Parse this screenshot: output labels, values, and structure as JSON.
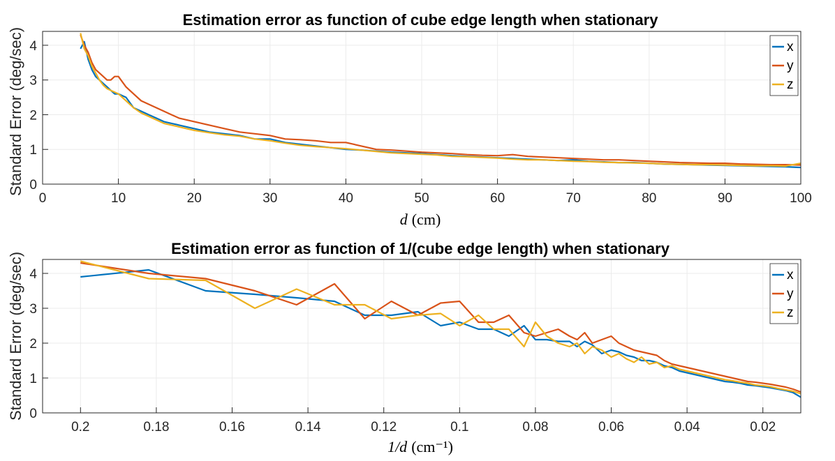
{
  "chart_data": [
    {
      "type": "line",
      "title": "Estimation error as function of cube edge length when stationary",
      "xlabel": "d",
      "xlabel_unit": "(cm)",
      "ylabel": "Standard Error (deg/sec)",
      "xlim": [
        0,
        100
      ],
      "ylim": [
        0,
        4.4
      ],
      "xticks": [
        0,
        10,
        20,
        30,
        40,
        50,
        60,
        70,
        80,
        90,
        100
      ],
      "yticks": [
        0,
        1,
        2,
        3,
        4
      ],
      "grid": true,
      "legend": "top-right",
      "x": [
        5,
        5.5,
        6,
        6.5,
        7,
        7.5,
        8,
        8.5,
        9,
        9.5,
        10,
        11,
        12,
        13,
        14,
        15,
        16,
        17,
        18,
        19,
        20,
        22,
        24,
        26,
        28,
        30,
        32,
        34,
        36,
        38,
        40,
        42,
        44,
        46,
        48,
        50,
        52,
        54,
        56,
        58,
        60,
        62,
        64,
        66,
        68,
        70,
        72,
        74,
        76,
        78,
        80,
        82,
        84,
        86,
        88,
        90,
        92,
        94,
        96,
        98,
        100
      ],
      "series": [
        {
          "name": "x",
          "color": "#0072BD",
          "values": [
            3.9,
            4.1,
            3.6,
            3.3,
            3.1,
            3.0,
            2.9,
            2.8,
            2.7,
            2.6,
            2.6,
            2.5,
            2.2,
            2.1,
            2.0,
            1.9,
            1.8,
            1.75,
            1.7,
            1.65,
            1.6,
            1.5,
            1.45,
            1.4,
            1.3,
            1.3,
            1.2,
            1.15,
            1.1,
            1.05,
            1.0,
            0.98,
            0.95,
            0.92,
            0.9,
            0.88,
            0.85,
            0.82,
            0.8,
            0.78,
            0.76,
            0.74,
            0.72,
            0.7,
            0.68,
            0.7,
            0.66,
            0.64,
            0.62,
            0.62,
            0.6,
            0.58,
            0.57,
            0.56,
            0.55,
            0.54,
            0.53,
            0.52,
            0.51,
            0.5,
            0.48
          ]
        },
        {
          "name": "y",
          "color": "#D95319",
          "values": [
            4.3,
            4.0,
            3.8,
            3.5,
            3.3,
            3.2,
            3.1,
            3.0,
            3.0,
            3.1,
            3.1,
            2.8,
            2.6,
            2.4,
            2.3,
            2.2,
            2.1,
            2.0,
            1.9,
            1.85,
            1.8,
            1.7,
            1.6,
            1.5,
            1.45,
            1.4,
            1.3,
            1.28,
            1.25,
            1.2,
            1.2,
            1.1,
            1.0,
            0.98,
            0.95,
            0.92,
            0.9,
            0.88,
            0.85,
            0.83,
            0.82,
            0.85,
            0.8,
            0.78,
            0.76,
            0.74,
            0.72,
            0.7,
            0.7,
            0.68,
            0.66,
            0.64,
            0.62,
            0.61,
            0.6,
            0.6,
            0.58,
            0.57,
            0.56,
            0.56,
            0.55
          ]
        },
        {
          "name": "z",
          "color": "#EDB120",
          "values": [
            4.35,
            3.9,
            3.7,
            3.4,
            3.2,
            3.0,
            2.85,
            2.75,
            2.7,
            2.65,
            2.6,
            2.4,
            2.2,
            2.05,
            1.95,
            1.85,
            1.75,
            1.7,
            1.65,
            1.6,
            1.55,
            1.48,
            1.42,
            1.38,
            1.3,
            1.25,
            1.18,
            1.12,
            1.08,
            1.05,
            1.02,
            0.98,
            0.94,
            0.9,
            0.88,
            0.86,
            0.84,
            0.8,
            0.79,
            0.77,
            0.75,
            0.72,
            0.7,
            0.7,
            0.68,
            0.66,
            0.65,
            0.63,
            0.62,
            0.61,
            0.6,
            0.58,
            0.57,
            0.56,
            0.56,
            0.55,
            0.54,
            0.53,
            0.53,
            0.52,
            0.6
          ]
        }
      ]
    },
    {
      "type": "line",
      "title": "Estimation error as function of 1/(cube edge length) when stationary",
      "xlabel": "1/d",
      "xlabel_unit": "(cm⁻¹)",
      "ylabel": "Standard Error (deg/sec)",
      "xlim": [
        0.21,
        0.01
      ],
      "x_reversed": true,
      "ylim": [
        0,
        4.4
      ],
      "xticks": [
        0.2,
        0.18,
        0.16,
        0.14,
        0.12,
        0.1,
        0.08,
        0.06,
        0.04,
        0.02
      ],
      "xtick_labels": [
        "0.2",
        "0.18",
        "0.16",
        "0.14",
        "0.12",
        "0.1",
        "0.08",
        "0.06",
        "0.04",
        "0.02"
      ],
      "yticks": [
        0,
        1,
        2,
        3,
        4
      ],
      "grid": true,
      "legend": "top-right",
      "x": [
        0.2,
        0.182,
        0.167,
        0.154,
        0.143,
        0.133,
        0.125,
        0.118,
        0.111,
        0.105,
        0.1,
        0.095,
        0.091,
        0.087,
        0.083,
        0.08,
        0.077,
        0.074,
        0.071,
        0.069,
        0.067,
        0.065,
        0.0625,
        0.06,
        0.058,
        0.056,
        0.054,
        0.052,
        0.05,
        0.048,
        0.046,
        0.044,
        0.042,
        0.04,
        0.038,
        0.036,
        0.034,
        0.032,
        0.03,
        0.028,
        0.026,
        0.024,
        0.022,
        0.02,
        0.018,
        0.016,
        0.014,
        0.012,
        0.01
      ],
      "series": [
        {
          "name": "x",
          "color": "#0072BD",
          "values": [
            3.9,
            4.1,
            3.5,
            3.4,
            3.3,
            3.2,
            2.8,
            2.8,
            2.9,
            2.5,
            2.6,
            2.4,
            2.4,
            2.2,
            2.5,
            2.1,
            2.1,
            2.05,
            2.05,
            1.9,
            2.05,
            1.95,
            1.7,
            1.8,
            1.75,
            1.65,
            1.6,
            1.5,
            1.5,
            1.45,
            1.35,
            1.3,
            1.2,
            1.15,
            1.1,
            1.05,
            1.0,
            0.95,
            0.9,
            0.88,
            0.85,
            0.8,
            0.78,
            0.75,
            0.72,
            0.68,
            0.64,
            0.58,
            0.45
          ]
        },
        {
          "name": "y",
          "color": "#D95319",
          "values": [
            4.3,
            4.0,
            3.85,
            3.5,
            3.1,
            3.7,
            2.7,
            3.2,
            2.8,
            3.15,
            3.2,
            2.6,
            2.6,
            2.8,
            2.3,
            2.2,
            2.3,
            2.4,
            2.2,
            2.1,
            2.3,
            2.0,
            2.1,
            2.2,
            2.0,
            1.9,
            1.8,
            1.75,
            1.7,
            1.65,
            1.5,
            1.4,
            1.35,
            1.3,
            1.25,
            1.2,
            1.15,
            1.1,
            1.05,
            1.0,
            0.95,
            0.9,
            0.88,
            0.85,
            0.82,
            0.78,
            0.74,
            0.68,
            0.6
          ]
        },
        {
          "name": "z",
          "color": "#EDB120",
          "values": [
            4.35,
            3.85,
            3.8,
            3.0,
            3.55,
            3.1,
            3.1,
            2.7,
            2.8,
            2.85,
            2.5,
            2.8,
            2.4,
            2.4,
            1.9,
            2.6,
            2.2,
            2.0,
            1.9,
            2.0,
            1.7,
            1.9,
            1.8,
            1.6,
            1.7,
            1.55,
            1.45,
            1.6,
            1.4,
            1.45,
            1.3,
            1.35,
            1.25,
            1.2,
            1.15,
            1.1,
            1.05,
            1.0,
            0.95,
            0.92,
            0.88,
            0.85,
            0.8,
            0.78,
            0.75,
            0.7,
            0.66,
            0.62,
            0.55
          ]
        }
      ]
    }
  ]
}
